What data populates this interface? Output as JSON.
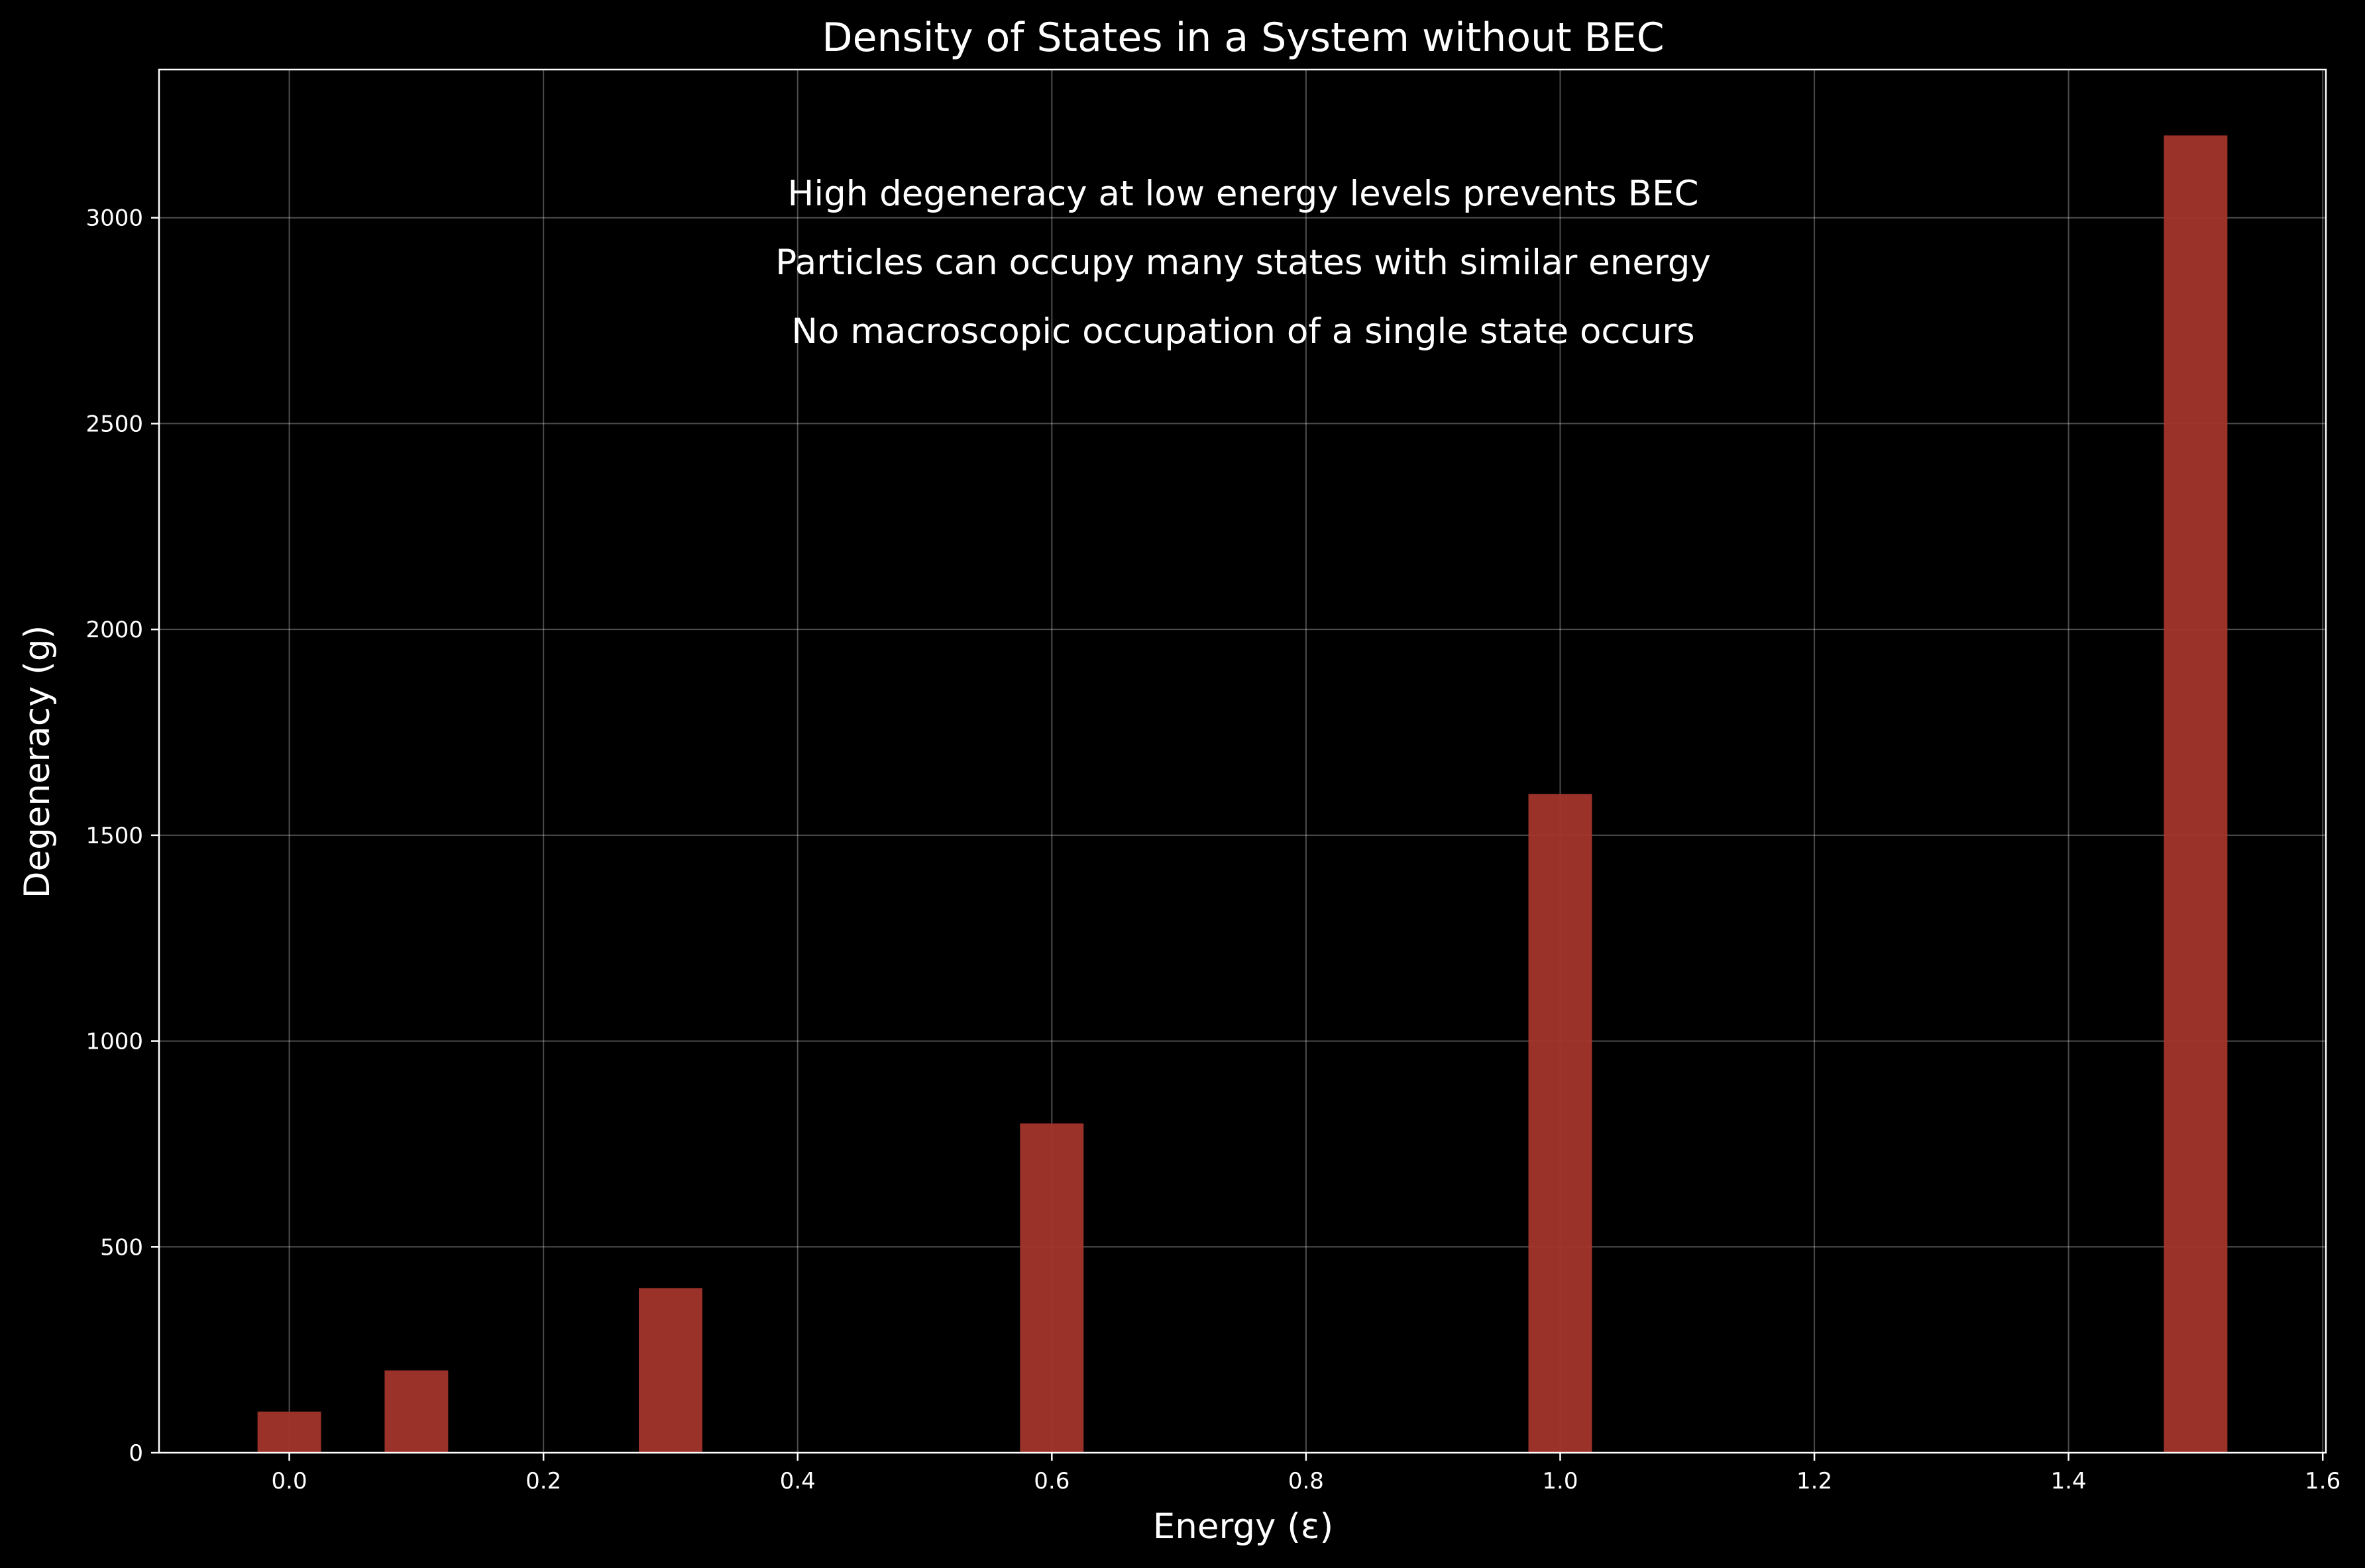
{
  "chart_data": {
    "type": "bar",
    "title": "Density of States in a System without BEC",
    "xlabel": "Energy (ε)",
    "ylabel": "Degeneracy (g)",
    "x": [
      0.0,
      0.1,
      0.3,
      0.6,
      1.0,
      1.5
    ],
    "values": [
      100,
      200,
      400,
      800,
      1600,
      3200
    ],
    "bar_width": 0.05,
    "xlim": [
      -0.1025,
      1.6025
    ],
    "ylim": [
      0,
      3360
    ],
    "xticks": [
      0.0,
      0.2,
      0.4,
      0.6,
      0.8,
      1.0,
      1.2,
      1.4,
      1.6
    ],
    "xtick_labels": [
      "0.0",
      "0.2",
      "0.4",
      "0.6",
      "0.8",
      "1.0",
      "1.2",
      "1.4",
      "1.6"
    ],
    "yticks": [
      0,
      500,
      1000,
      1500,
      2000,
      2500,
      3000
    ],
    "ytick_labels": [
      "0",
      "500",
      "1000",
      "1500",
      "2000",
      "2500",
      "3000"
    ],
    "annotations": [
      "High degeneracy at low energy levels prevents BEC",
      "Particles can occupy many states with similar energy",
      "No macroscopic occupation of a single state occurs"
    ],
    "grid": true,
    "bar_color": "#a3352c",
    "background_color": "#000000",
    "text_color": "#ffffff"
  }
}
